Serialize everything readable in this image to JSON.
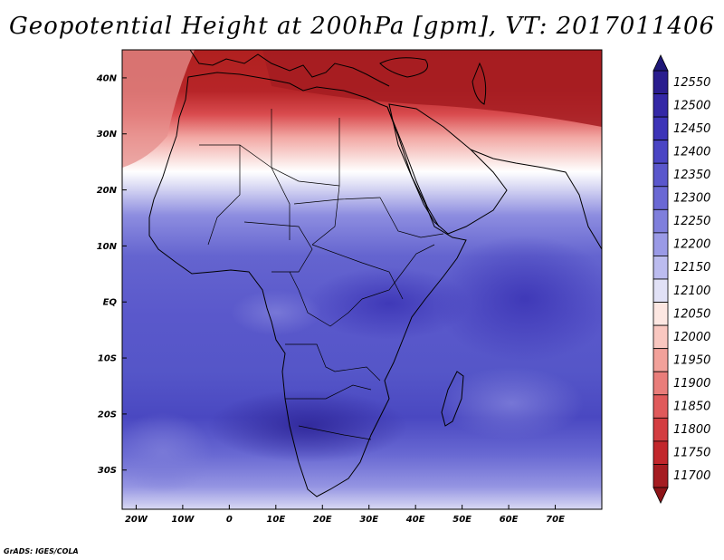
{
  "title": "Geopotential Height at 200hPa [gpm], VT: 2017011406",
  "credit": "GrADS: IGES/COLA",
  "map": {
    "region": "Africa",
    "lon_range": [
      -23,
      80
    ],
    "lat_range": [
      -37,
      45
    ],
    "lat_labels": [
      {
        "lat": 40,
        "text": "40N"
      },
      {
        "lat": 30,
        "text": "30N"
      },
      {
        "lat": 20,
        "text": "20N"
      },
      {
        "lat": 10,
        "text": "10N"
      },
      {
        "lat": 0,
        "text": "EQ"
      },
      {
        "lat": -10,
        "text": "10S"
      },
      {
        "lat": -20,
        "text": "20S"
      },
      {
        "lat": -30,
        "text": "30S"
      }
    ],
    "lon_labels": [
      {
        "lon": -20,
        "text": "20W"
      },
      {
        "lon": -10,
        "text": "10W"
      },
      {
        "lon": 0,
        "text": "0"
      },
      {
        "lon": 10,
        "text": "10E"
      },
      {
        "lon": 20,
        "text": "20E"
      },
      {
        "lon": 30,
        "text": "30E"
      },
      {
        "lon": 40,
        "text": "40E"
      },
      {
        "lon": 50,
        "text": "50E"
      },
      {
        "lon": 60,
        "text": "60E"
      },
      {
        "lon": 70,
        "text": "70E"
      }
    ]
  },
  "colorbar": {
    "levels": [
      "12550",
      "12500",
      "12450",
      "12400",
      "12350",
      "12300",
      "12250",
      "12200",
      "12150",
      "12100",
      "12050",
      "12000",
      "11950",
      "11900",
      "11850",
      "11800",
      "11750",
      "11700"
    ],
    "colors": [
      "#2a1d8e",
      "#3428a6",
      "#3d34b8",
      "#4a45c4",
      "#5a57cc",
      "#6a68d4",
      "#7f7fdc",
      "#9a9ae6",
      "#bcbcef",
      "#e1e1f6",
      "#fde7e2",
      "#f9c7c0",
      "#f2a19a",
      "#e97d7a",
      "#e05a5b",
      "#d33d41",
      "#c2272c",
      "#a51c21"
    ]
  }
}
